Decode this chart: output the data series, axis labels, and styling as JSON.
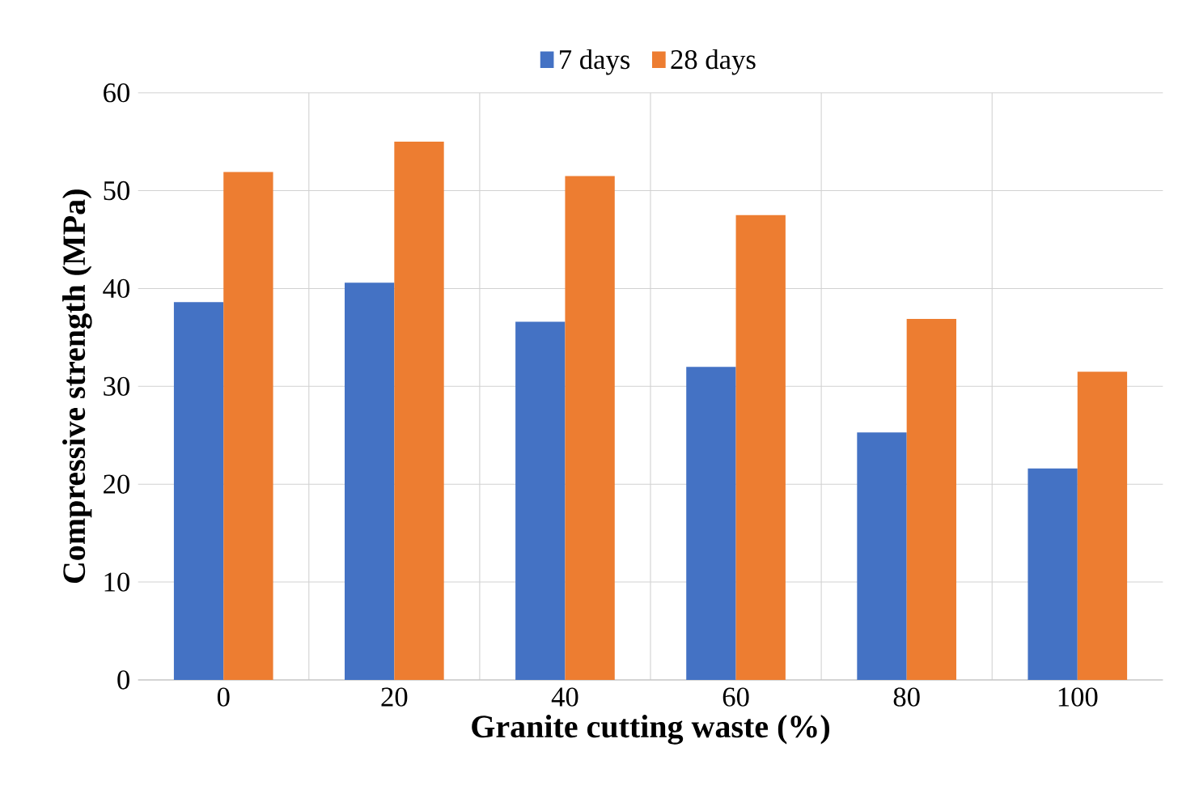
{
  "chart_data": {
    "type": "bar",
    "xlabel": "Granite cutting waste (%)",
    "ylabel": "Compressive strength (MPa)",
    "categories": [
      "0",
      "20",
      "40",
      "60",
      "80",
      "100"
    ],
    "series": [
      {
        "name": "7 days",
        "color": "#4472c4",
        "values": [
          38.6,
          40.6,
          36.6,
          32.0,
          25.3,
          21.6
        ]
      },
      {
        "name": "28 days",
        "color": "#ed7d31",
        "values": [
          51.9,
          55.0,
          51.5,
          47.5,
          36.9,
          31.5
        ]
      }
    ],
    "ylim": [
      0,
      60
    ],
    "yticks": [
      0,
      10,
      20,
      30,
      40,
      50,
      60
    ],
    "grid": true,
    "legend": "top"
  }
}
